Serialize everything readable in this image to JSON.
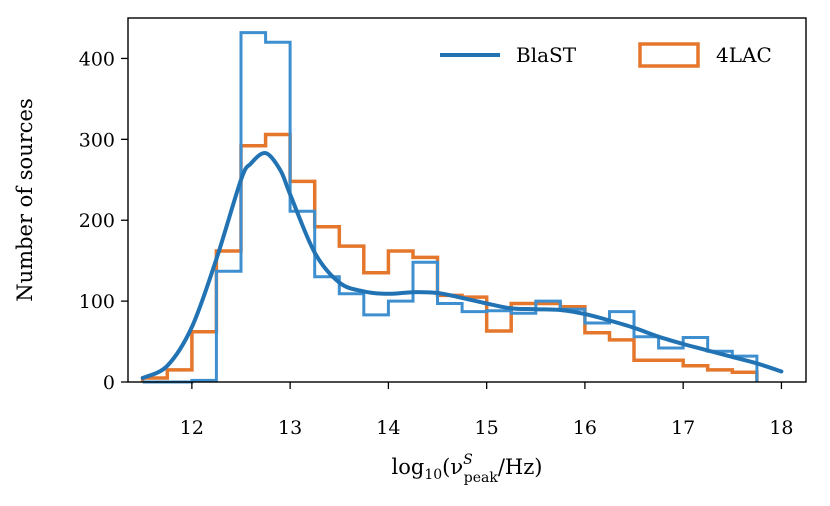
{
  "chart_data": {
    "type": "histogram",
    "title": "",
    "xlabel": "log10(νˢpeak/Hz)",
    "xlabel_parts": {
      "prefix": "log",
      "sub": "10",
      "open": "(ν",
      "sup": "S",
      "sub2": "peak",
      "rest": "/Hz)"
    },
    "ylabel": "Number of sources",
    "xlim": [
      11.35,
      18.25
    ],
    "ylim": [
      0,
      450
    ],
    "x_ticks": [
      12,
      13,
      14,
      15,
      16,
      17,
      18
    ],
    "y_ticks": [
      0,
      100,
      200,
      300,
      400
    ],
    "bin_edges": [
      11.5,
      11.75,
      12.0,
      12.25,
      12.5,
      12.75,
      13.0,
      13.25,
      13.5,
      13.75,
      14.0,
      14.25,
      14.5,
      14.75,
      15.0,
      15.25,
      15.5,
      15.75,
      16.0,
      16.25,
      16.5,
      16.75,
      17.0,
      17.25,
      17.5,
      17.75
    ],
    "series": [
      {
        "name": "4LAC",
        "kind": "histogram",
        "color": "#e5772d",
        "counts": [
          5,
          15,
          62,
          162,
          292,
          306,
          248,
          192,
          168,
          135,
          162,
          154,
          107,
          105,
          63,
          97,
          97,
          93,
          61,
          52,
          27,
          27,
          20,
          15,
          12
        ]
      },
      {
        "name": "BlaST",
        "kind": "histogram",
        "color": "#3e8fcf",
        "counts": [
          0,
          0,
          2,
          137,
          432,
          420,
          211,
          130,
          109,
          83,
          100,
          148,
          97,
          87,
          88,
          85,
          100,
          90,
          73,
          87,
          56,
          42,
          55,
          38,
          32
        ]
      },
      {
        "name": "BlaST",
        "kind": "kde",
        "color": "#2273b4",
        "x": [
          11.5,
          11.75,
          12.0,
          12.25,
          12.5,
          12.6,
          12.75,
          12.9,
          13.0,
          13.25,
          13.5,
          13.75,
          14.0,
          14.25,
          14.5,
          14.75,
          15.0,
          15.25,
          15.5,
          15.75,
          16.0,
          16.25,
          16.5,
          16.75,
          17.0,
          17.25,
          17.5,
          17.75,
          18.0
        ],
        "y": [
          5,
          20,
          68,
          152,
          250,
          270,
          283,
          262,
          232,
          160,
          123,
          112,
          109,
          111,
          110,
          104,
          97,
          91,
          90,
          89,
          84,
          76,
          67,
          56,
          47,
          39,
          31,
          23,
          13
        ]
      }
    ],
    "legend": {
      "placement": "top-right",
      "entries": [
        {
          "label": "BlaST",
          "symbol": "line",
          "color": "#2273b4"
        },
        {
          "label": "4LAC",
          "symbol": "box",
          "color": "#e5772d"
        }
      ]
    }
  }
}
